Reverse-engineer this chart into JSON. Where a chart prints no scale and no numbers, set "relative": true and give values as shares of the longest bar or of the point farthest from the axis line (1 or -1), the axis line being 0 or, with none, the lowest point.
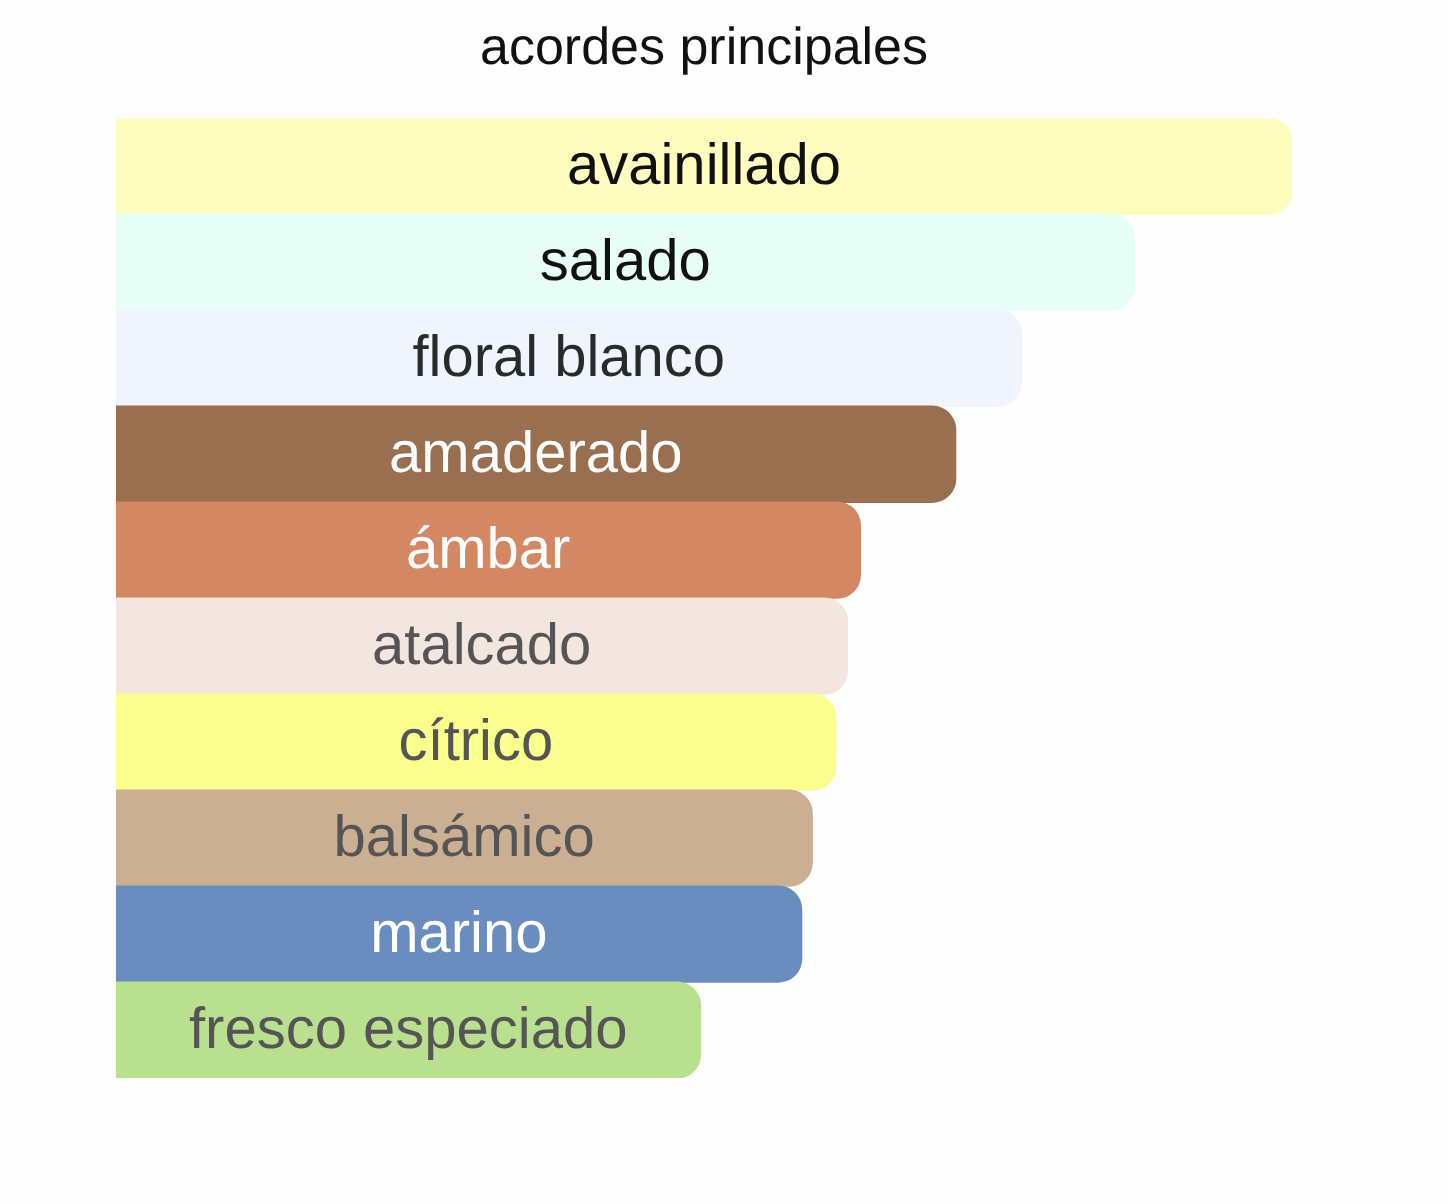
{
  "chart_data": {
    "type": "bar",
    "title": "acordes principales",
    "orientation": "horizontal",
    "relative": true,
    "categories": [
      "avainillado",
      "salado",
      "floral blanco",
      "amaderado",
      "ámbar",
      "atalcado",
      "cítrico",
      "balsámico",
      "marino",
      "fresco especiado"
    ],
    "values": [
      1,
      0.866,
      0.77,
      0.714,
      0.633,
      0.622,
      0.612,
      0.592,
      0.583,
      0.497
    ],
    "colors": [
      "#fffcbf",
      "#e8fff8",
      "#eff4fd",
      "#996f4f",
      "#d48763",
      "#f2e6de",
      "#faff8e",
      "#cbaf93",
      "#698dbe",
      "#b9e08f"
    ]
  }
}
